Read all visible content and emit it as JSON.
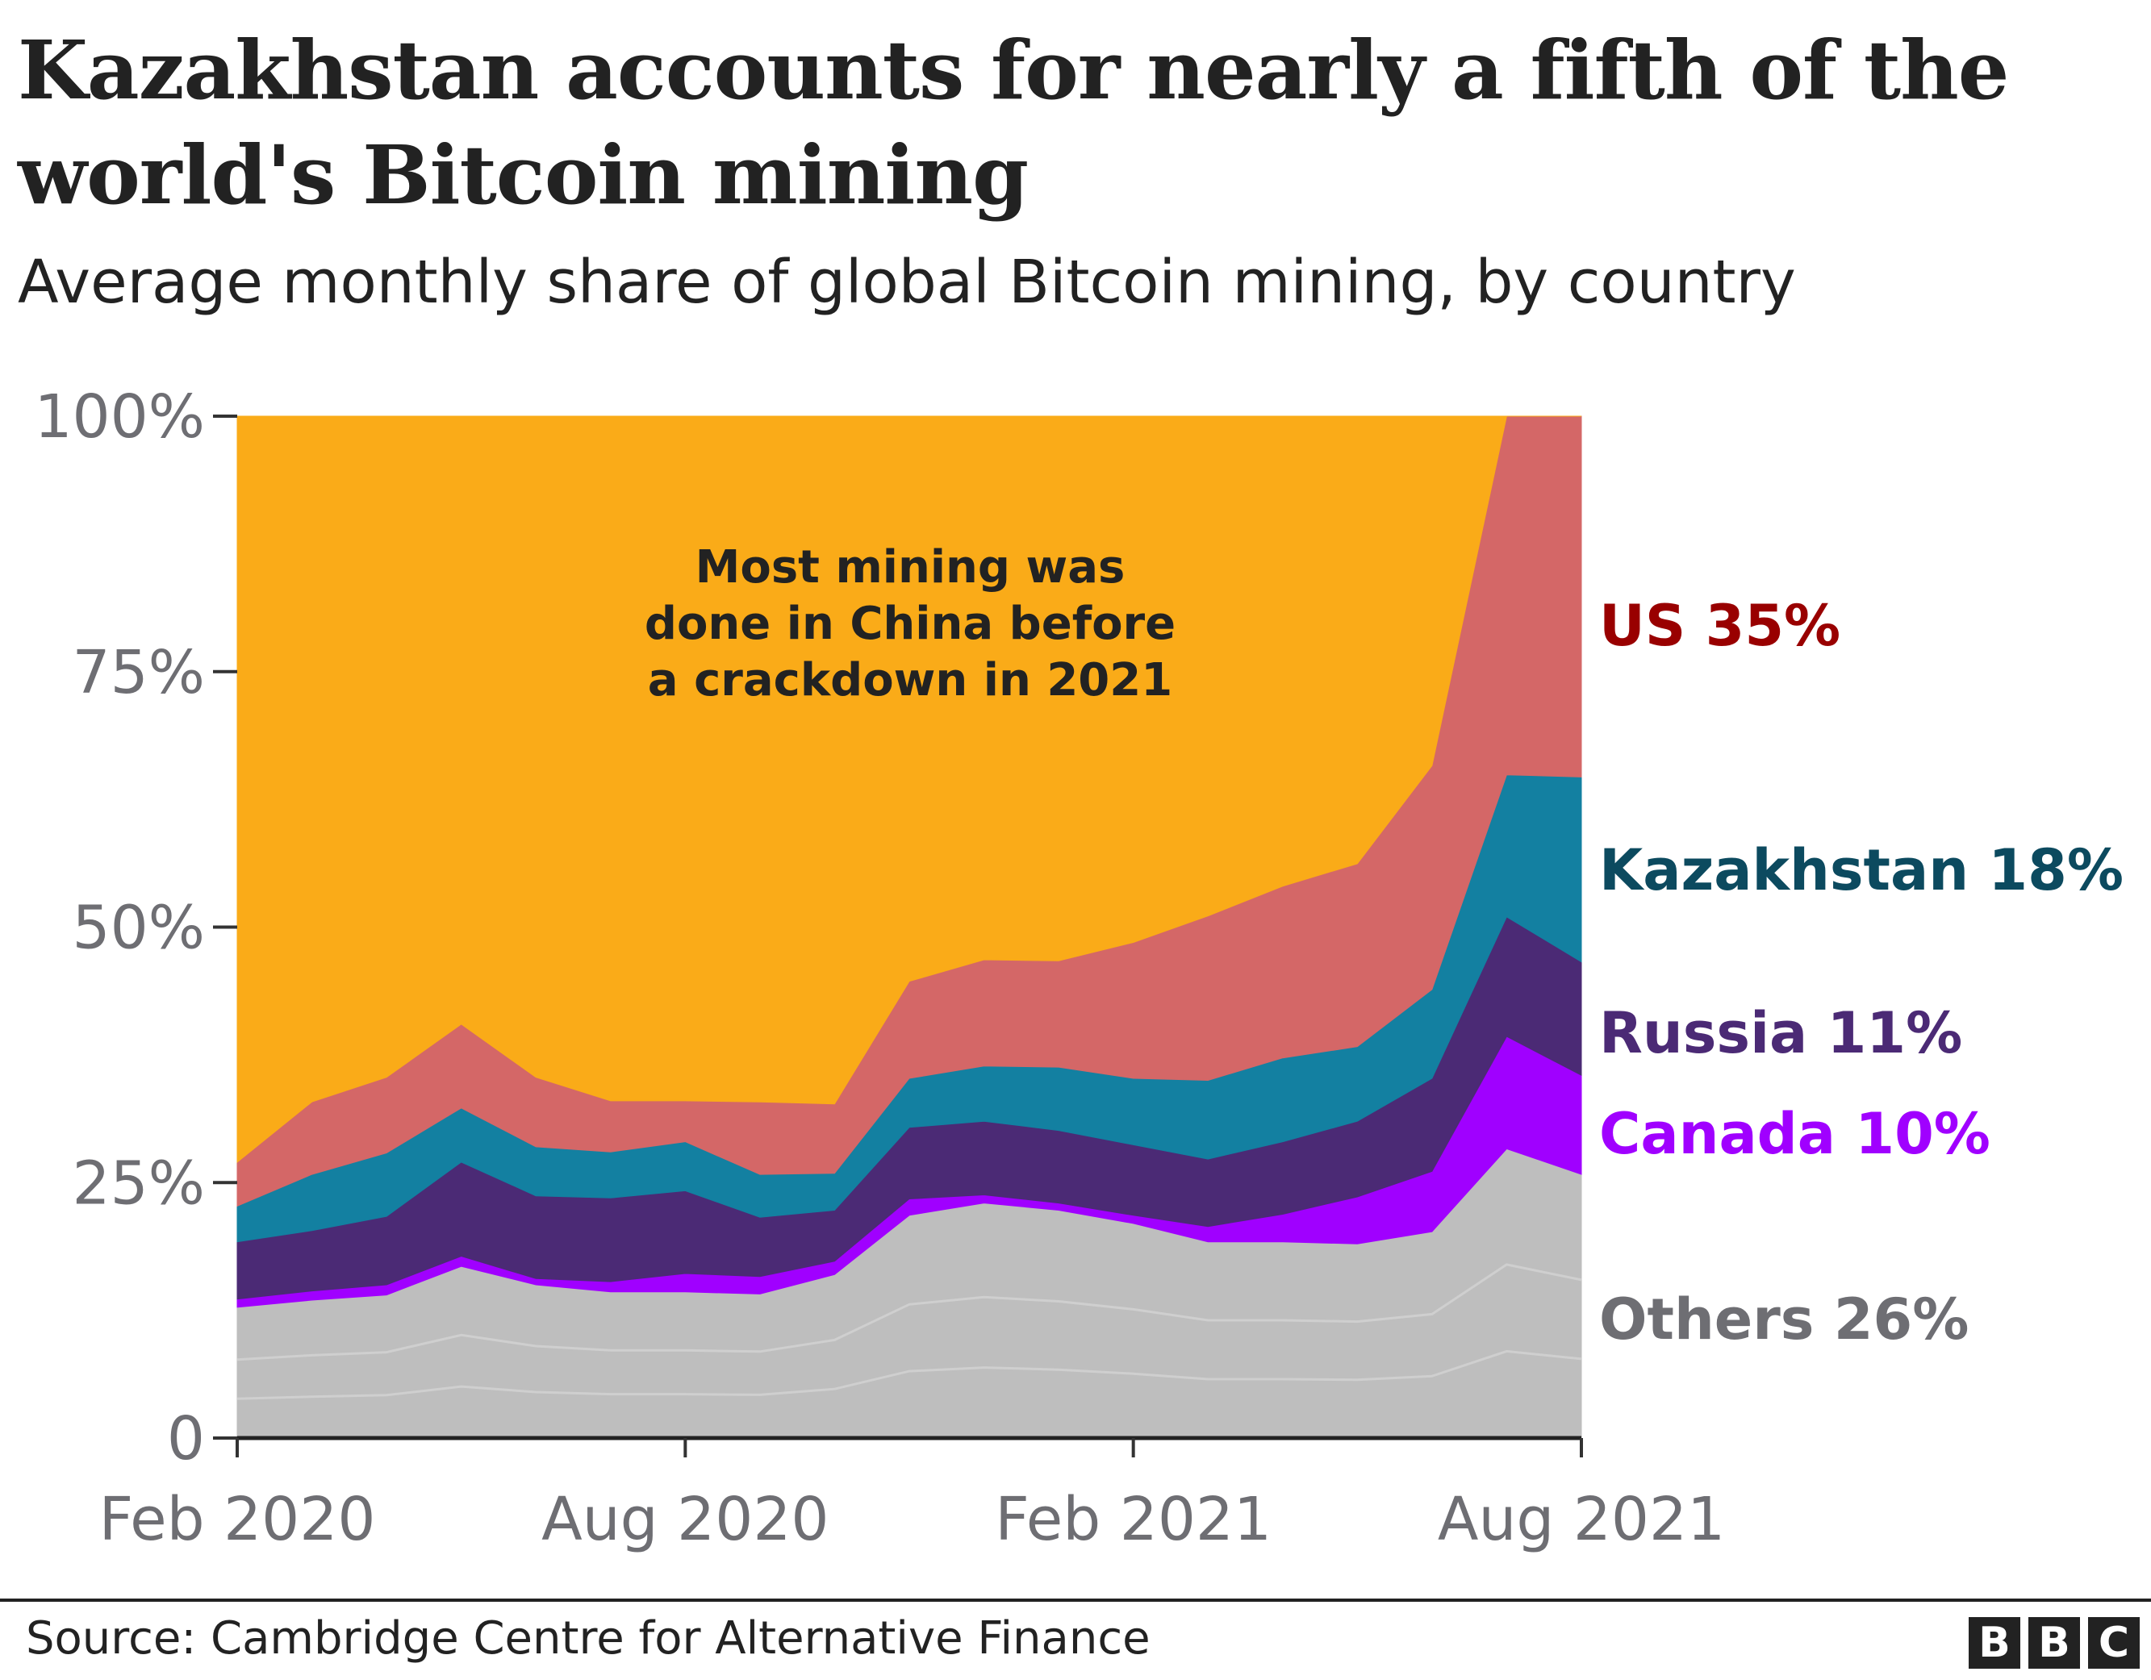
{
  "chart_data": {
    "type": "area",
    "stacked": true,
    "title": "Kazakhstan accounts for nearly a fifth of the world's Bitcoin mining",
    "subtitle": "Average monthly share of global Bitcoin mining, by country",
    "xlabel": "",
    "ylabel": "",
    "ylim": [
      0,
      100
    ],
    "yticks": [
      0,
      25,
      50,
      75,
      100
    ],
    "ytick_labels": [
      "0",
      "25%",
      "50%",
      "75%",
      "100%"
    ],
    "xlim": [
      0,
      18
    ],
    "xticks": [
      0,
      6,
      12,
      18
    ],
    "xtick_labels": [
      "Feb 2020",
      "Aug 2020",
      "Feb 2021",
      "Aug 2021"
    ],
    "x": [
      0,
      1,
      2,
      3,
      4,
      5,
      6,
      7,
      8,
      9,
      10,
      11,
      12,
      13,
      14,
      15,
      16,
      17,
      18
    ],
    "months": [
      "Feb 2020",
      "Mar 2020",
      "Apr 2020",
      "May 2020",
      "Jun 2020",
      "Jul 2020",
      "Aug 2020",
      "Sep 2020",
      "Oct 2020",
      "Nov 2020",
      "Dec 2020",
      "Jan 2021",
      "Feb 2021",
      "Mar 2021",
      "Apr 2021",
      "May 2021",
      "Jun 2021",
      "Jul 2021",
      "Aug 2021"
    ],
    "series": [
      {
        "name": "Others",
        "label": "Others 26%",
        "color": "#bebebe",
        "label_color": "#6e6e73",
        "values": [
          12.8,
          13.5,
          14,
          16.8,
          15,
          14.3,
          14.3,
          14.1,
          16,
          21.8,
          23,
          22.3,
          21,
          19.2,
          19.2,
          19,
          20.2,
          28.3,
          25.8
        ]
      },
      {
        "name": "Canada",
        "label": "Canada 10%",
        "color": "#a000ff",
        "label_color": "#a000ff",
        "values": [
          0.8,
          0.9,
          1,
          1,
          0.6,
          1,
          1.8,
          1.7,
          1.3,
          1.6,
          0.8,
          0.7,
          0.8,
          1.5,
          2.7,
          4.6,
          5.9,
          11,
          9.7
        ]
      },
      {
        "name": "Russia",
        "label": "Russia 11%",
        "color": "#4b2a75",
        "label_color": "#4b2a75",
        "values": [
          5.6,
          5.9,
          6.7,
          9.2,
          8.1,
          8.2,
          8.1,
          5.8,
          5,
          7,
          7.2,
          7.1,
          6.9,
          6.6,
          7.1,
          7.4,
          9.1,
          11.7,
          11.1
        ]
      },
      {
        "name": "Kazakhstan",
        "label": "Kazakhstan 18%",
        "color": "#1380a1",
        "label_color": "#0c4a5f",
        "values": [
          3.5,
          5.5,
          6.2,
          5.3,
          4.8,
          4.5,
          4.8,
          4.2,
          3.6,
          4.8,
          5.4,
          6.2,
          6.5,
          7.7,
          8.2,
          7.3,
          8.7,
          13.9,
          18.1
        ]
      },
      {
        "name": "US",
        "label": "US 35%",
        "color": "#d46767",
        "label_color": "#990000",
        "values": [
          4.3,
          7.1,
          7.4,
          8.2,
          6.8,
          5,
          4,
          7.1,
          6.8,
          9.5,
          10.4,
          10.4,
          13.3,
          16.1,
          16.8,
          17.9,
          21.9,
          35.1,
          35.3
        ]
      },
      {
        "name": "China",
        "label": "",
        "color": "#faab18",
        "label_color": "#222222",
        "values": [
          73,
          67.1,
          64.7,
          59.5,
          64.7,
          67,
          67,
          67.1,
          67.3,
          55.3,
          53.2,
          53.3,
          51.5,
          48.9,
          46,
          43.8,
          34.2,
          0,
          0
        ]
      }
    ],
    "annotation": [
      "Most mining was",
      "done in China before",
      "a crackdown in 2021"
    ],
    "legend": "direct labels at right end"
  },
  "footer": {
    "source": "Source: Cambridge Centre for Alternative Finance",
    "logo_letters": [
      "B",
      "B",
      "C"
    ]
  }
}
